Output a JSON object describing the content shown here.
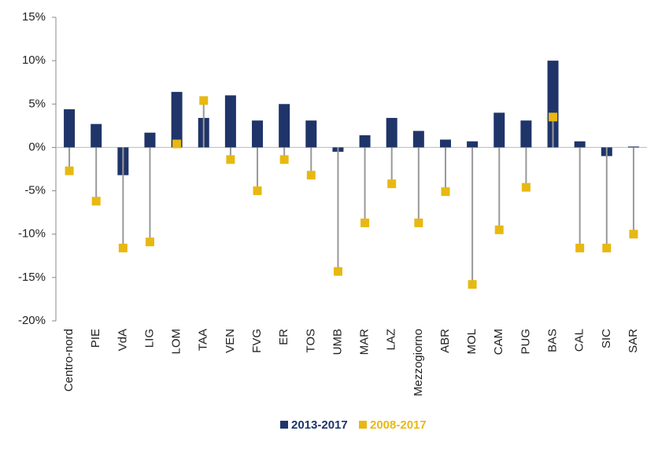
{
  "chart_data": {
    "type": "bar_lollipop",
    "categories": [
      "Centro-nord",
      "PIE",
      "VdA",
      "LIG",
      "LOM",
      "TAA",
      "VEN",
      "FVG",
      "ER",
      "TOS",
      "UMB",
      "MAR",
      "LAZ",
      "Mezzogiorno",
      "ABR",
      "MOL",
      "CAM",
      "PUG",
      "BAS",
      "CAL",
      "SIC",
      "SAR"
    ],
    "series": [
      {
        "name": "2013-2017",
        "color": "#1f3469",
        "values": [
          4.4,
          2.7,
          -3.2,
          1.7,
          6.4,
          3.4,
          6.0,
          3.1,
          5.0,
          3.1,
          -0.5,
          1.4,
          3.4,
          1.9,
          0.9,
          0.7,
          4.0,
          3.1,
          10.0,
          0.7,
          -1.0,
          0.1
        ]
      },
      {
        "name": "2008-2017",
        "color": "#e8b812",
        "values": [
          -2.7,
          -6.2,
          -11.6,
          -10.9,
          0.4,
          5.4,
          -1.4,
          -5.0,
          -1.4,
          -3.2,
          -14.3,
          -8.7,
          -4.2,
          -8.7,
          -5.1,
          -15.8,
          -9.5,
          -4.6,
          3.5,
          -11.6,
          -11.6,
          -10.0
        ]
      }
    ],
    "ylim": [
      -20,
      15
    ],
    "yticks": [
      {
        "value": -20,
        "label": "-20%"
      },
      {
        "value": -15,
        "label": "-15%"
      },
      {
        "value": -10,
        "label": "-10%"
      },
      {
        "value": -5,
        "label": "-5%"
      },
      {
        "value": 0,
        "label": "0%"
      },
      {
        "value": 5,
        "label": "5%"
      },
      {
        "value": 10,
        "label": "10%"
      },
      {
        "value": 15,
        "label": "15%"
      }
    ],
    "legend": "bottom"
  }
}
